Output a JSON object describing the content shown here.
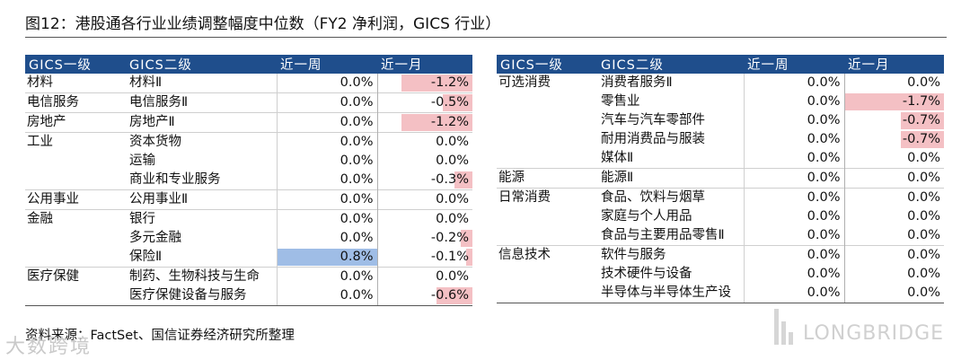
{
  "title": "图12：港股通各行业业绩调整幅度中位数（FY2 净利润，GICS 行业）",
  "headers": [
    "GICS一级",
    "GICS二级",
    "近一周",
    "近一月"
  ],
  "left_rows": [
    {
      "l1": "材料",
      "l2": "材料Ⅱ",
      "week": "0.0%",
      "month": "-1.2%",
      "wv": 0.0,
      "mv": -1.2
    },
    {
      "l1": "电信服务",
      "l2": "电信服务Ⅱ",
      "week": "0.0%",
      "month": "-0.5%",
      "wv": 0.0,
      "mv": -0.5
    },
    {
      "l1": "房地产",
      "l2": "房地产Ⅱ",
      "week": "0.0%",
      "month": "-1.2%",
      "wv": 0.0,
      "mv": -1.2
    },
    {
      "l1": "工业",
      "l2": "资本货物",
      "week": "0.0%",
      "month": "0.0%",
      "wv": 0.0,
      "mv": 0.0
    },
    {
      "l1": "",
      "l2": "运输",
      "week": "0.0%",
      "month": "0.0%",
      "wv": 0.0,
      "mv": 0.0
    },
    {
      "l1": "",
      "l2": "商业和专业服务",
      "week": "0.0%",
      "month": "-0.3%",
      "wv": 0.0,
      "mv": -0.3
    },
    {
      "l1": "公用事业",
      "l2": "公用事业Ⅱ",
      "week": "0.0%",
      "month": "0.0%",
      "wv": 0.0,
      "mv": 0.0
    },
    {
      "l1": "金融",
      "l2": "银行",
      "week": "0.0%",
      "month": "0.0%",
      "wv": 0.0,
      "mv": 0.0
    },
    {
      "l1": "",
      "l2": "多元金融",
      "week": "0.0%",
      "month": "-0.2%",
      "wv": 0.0,
      "mv": -0.2
    },
    {
      "l1": "",
      "l2": "保险Ⅱ",
      "week": "0.8%",
      "month": "-0.1%",
      "wv": 0.8,
      "mv": -0.1
    },
    {
      "l1": "医疗保健",
      "l2": "制药、生物科技与生命",
      "week": "0.0%",
      "month": "0.0%",
      "wv": 0.0,
      "mv": 0.0
    },
    {
      "l1": "",
      "l2": "医疗保健设备与服务",
      "week": "0.0%",
      "month": "-0.6%",
      "wv": 0.0,
      "mv": -0.6
    }
  ],
  "right_rows": [
    {
      "l1": "可选消费",
      "l2": "消费者服务Ⅱ",
      "week": "0.0%",
      "month": "0.0%",
      "wv": 0.0,
      "mv": 0.0
    },
    {
      "l1": "",
      "l2": "零售业",
      "week": "0.0%",
      "month": "-1.7%",
      "wv": 0.0,
      "mv": -1.7
    },
    {
      "l1": "",
      "l2": "汽车与汽车零部件",
      "week": "0.0%",
      "month": "-0.7%",
      "wv": 0.0,
      "mv": -0.7
    },
    {
      "l1": "",
      "l2": "耐用消费品与服装",
      "week": "0.0%",
      "month": "-0.7%",
      "wv": 0.0,
      "mv": -0.7
    },
    {
      "l1": "",
      "l2": "媒体Ⅱ",
      "week": "0.0%",
      "month": "0.0%",
      "wv": 0.0,
      "mv": 0.0
    },
    {
      "l1": "能源",
      "l2": "能源Ⅱ",
      "week": "0.0%",
      "month": "0.0%",
      "wv": 0.0,
      "mv": 0.0
    },
    {
      "l1": "日常消费",
      "l2": "食品、饮料与烟草",
      "week": "0.0%",
      "month": "0.0%",
      "wv": 0.0,
      "mv": 0.0
    },
    {
      "l1": "",
      "l2": "家庭与个人用品",
      "week": "0.0%",
      "month": "0.0%",
      "wv": 0.0,
      "mv": 0.0
    },
    {
      "l1": "",
      "l2": "食品与主要用品零售Ⅱ",
      "week": "0.0%",
      "month": "0.0%",
      "wv": 0.0,
      "mv": 0.0
    },
    {
      "l1": "信息技术",
      "l2": "软件与服务",
      "week": "0.0%",
      "month": "0.0%",
      "wv": 0.0,
      "mv": 0.0
    },
    {
      "l1": "",
      "l2": "技术硬件与设备",
      "week": "0.0%",
      "month": "0.0%",
      "wv": 0.0,
      "mv": 0.0
    },
    {
      "l1": "",
      "l2": "半导体与半导体生产设",
      "week": "0.0%",
      "month": "0.0%",
      "wv": 0.0,
      "mv": 0.0
    }
  ],
  "source": "资料来源：FactSet、国信证券经济研究所整理",
  "watermark_left": "大数跨境",
  "watermark_right": "LONGBRIDGE",
  "colors": {
    "header_bg": "#1f4e8c",
    "neg_fill": "#f4c0c4",
    "pos_fill": "#9fbde6"
  }
}
